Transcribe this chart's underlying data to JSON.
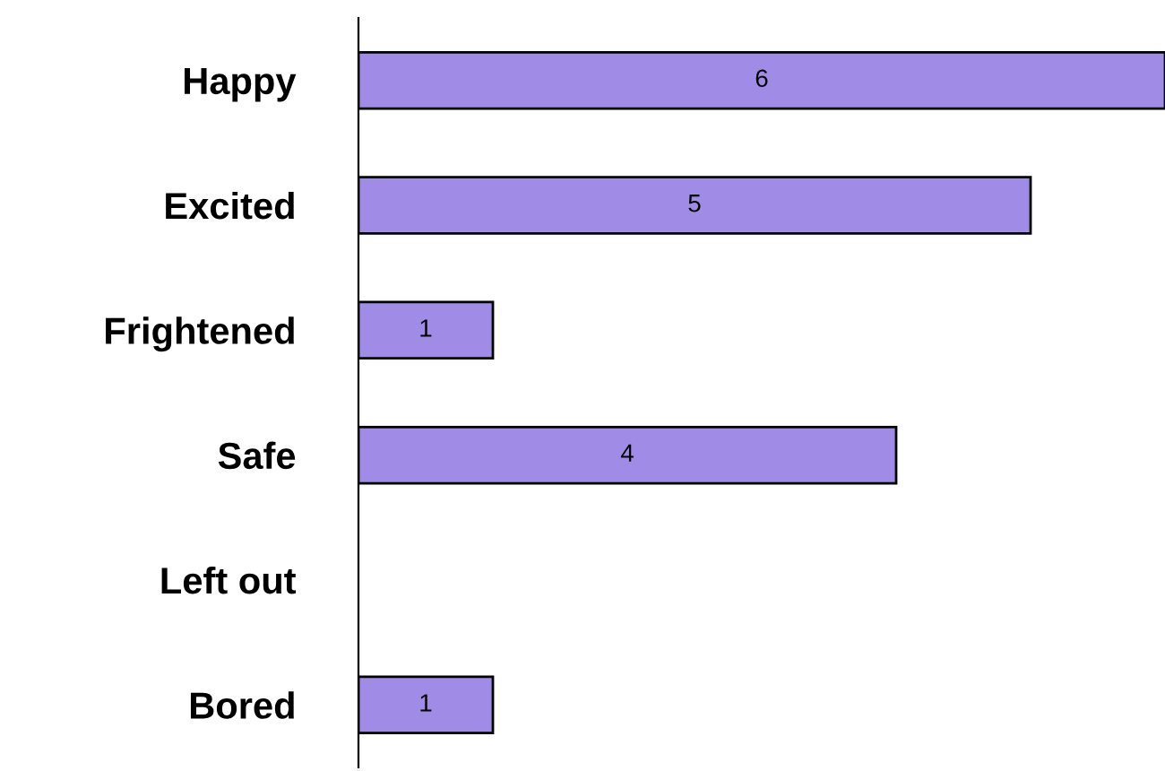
{
  "chart_data": {
    "type": "bar",
    "orientation": "horizontal",
    "categories": [
      "Happy",
      "Excited",
      "Frightened",
      "Safe",
      "Left out",
      "Bored"
    ],
    "values": [
      6,
      5,
      1,
      4,
      null,
      1
    ],
    "value_labels": [
      "6",
      "5",
      "1",
      "4",
      null,
      "1"
    ],
    "color": "#a08ce6",
    "grid": false,
    "legend": false,
    "tick_labels": "y"
  }
}
